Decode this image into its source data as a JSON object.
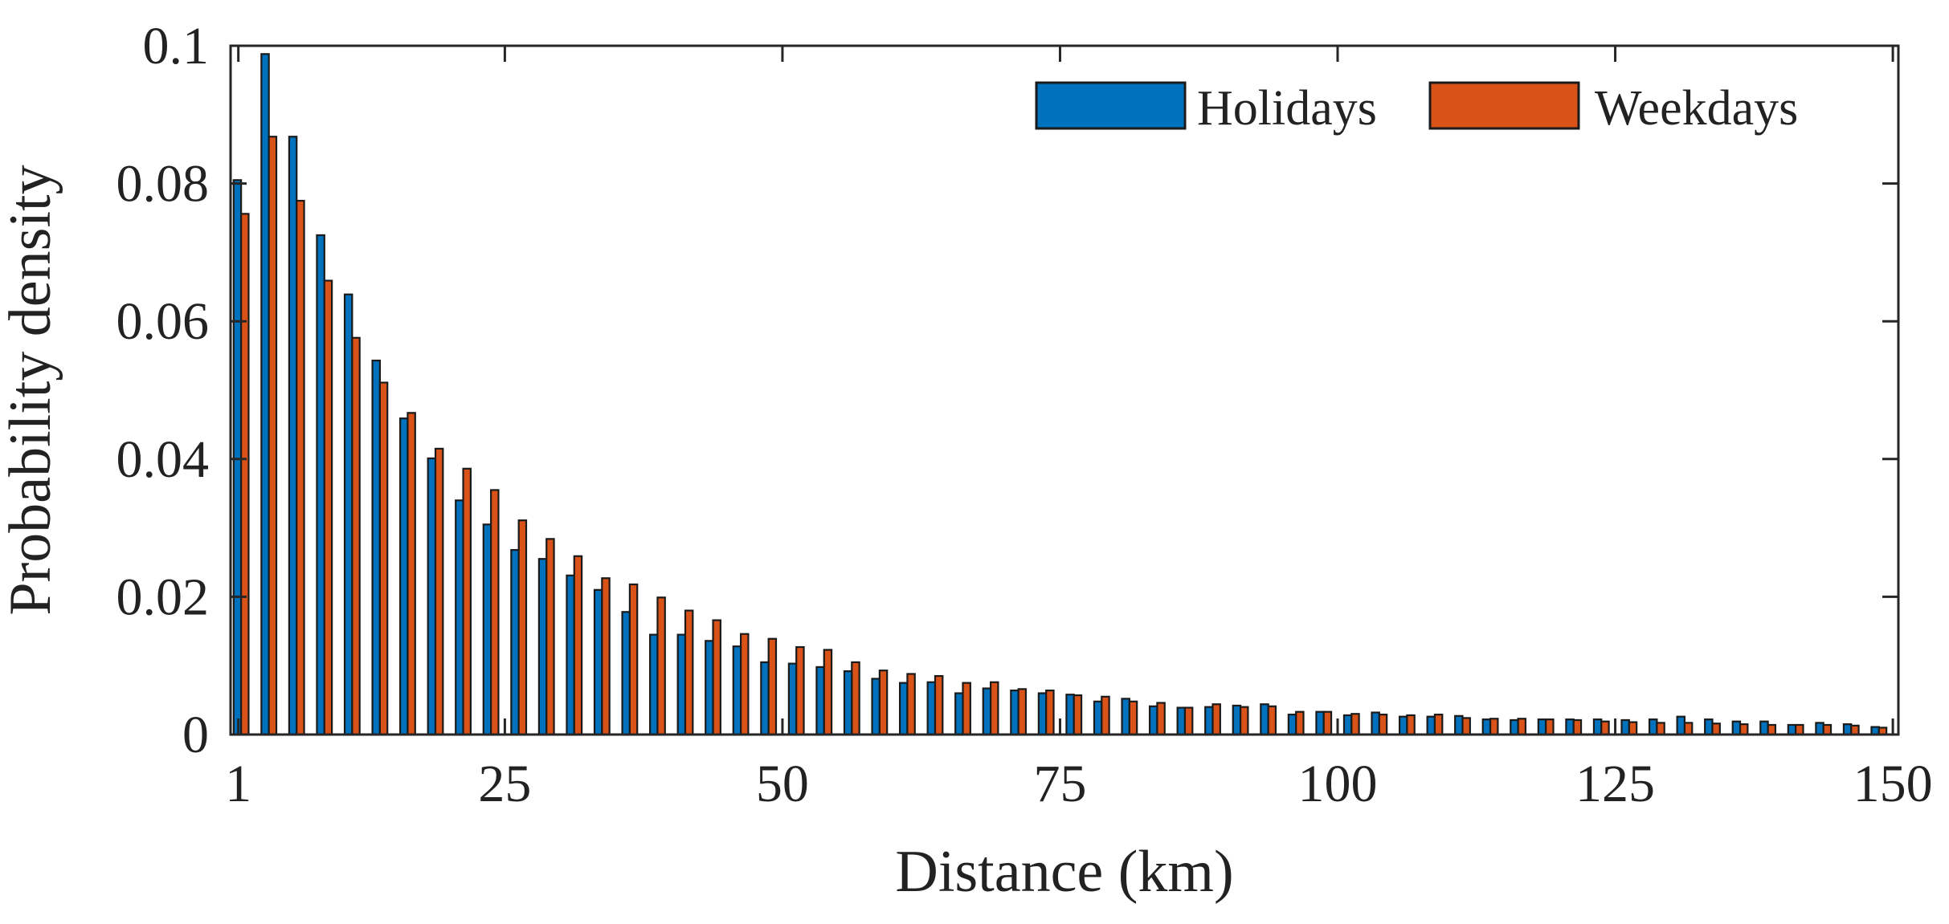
{
  "chart_data": {
    "type": "bar",
    "xlabel": "Distance (km)",
    "ylabel": "Probability density",
    "xlim": [
      0.3,
      150.5
    ],
    "ylim": [
      0,
      0.1
    ],
    "x_ticks": [
      1,
      25,
      50,
      75,
      100,
      125,
      150
    ],
    "x_tick_labels": [
      "1",
      "25",
      "50",
      "75",
      "100",
      "125",
      "150"
    ],
    "y_ticks": [
      0,
      0.02,
      0.04,
      0.06,
      0.08,
      0.1
    ],
    "y_tick_labels": [
      "0",
      "0.02",
      "0.04",
      "0.06",
      "0.08",
      "0.1"
    ],
    "legend_position": "top-right",
    "grid": false,
    "bin_width_km": 2.5,
    "x": [
      1.25,
      3.75,
      6.25,
      8.75,
      11.25,
      13.75,
      16.25,
      18.75,
      21.25,
      23.75,
      26.25,
      28.75,
      31.25,
      33.75,
      36.25,
      38.75,
      41.25,
      43.75,
      46.25,
      48.75,
      51.25,
      53.75,
      56.25,
      58.75,
      61.25,
      63.75,
      66.25,
      68.75,
      71.25,
      73.75,
      76.25,
      78.75,
      81.25,
      83.75,
      86.25,
      88.75,
      91.25,
      93.75,
      96.25,
      98.75,
      101.25,
      103.75,
      106.25,
      108.75,
      111.25,
      113.75,
      116.25,
      118.75,
      121.25,
      123.75,
      126.25,
      128.75,
      131.25,
      133.75,
      136.25,
      138.75,
      141.25,
      143.75,
      146.25,
      148.75
    ],
    "series": [
      {
        "name": "Holidays",
        "color": "#0072BD",
        "values": [
          0.0805,
          0.0988,
          0.0868,
          0.0725,
          0.0639,
          0.0543,
          0.0459,
          0.0401,
          0.034,
          0.0305,
          0.0268,
          0.0255,
          0.0231,
          0.021,
          0.0178,
          0.0145,
          0.0145,
          0.0136,
          0.0128,
          0.0105,
          0.0103,
          0.0098,
          0.0092,
          0.0081,
          0.0075,
          0.0076,
          0.006,
          0.0067,
          0.0064,
          0.006,
          0.0058,
          0.0048,
          0.0052,
          0.0041,
          0.0039,
          0.004,
          0.0042,
          0.0044,
          0.0029,
          0.0033,
          0.0028,
          0.0032,
          0.0026,
          0.0026,
          0.0027,
          0.0022,
          0.0021,
          0.0022,
          0.0022,
          0.0022,
          0.0021,
          0.0022,
          0.0026,
          0.0022,
          0.0019,
          0.0019,
          0.0014,
          0.0017,
          0.0015,
          0.0011
        ]
      },
      {
        "name": "Weekdays",
        "color": "#D95319",
        "values": [
          0.0756,
          0.0868,
          0.0775,
          0.0659,
          0.0576,
          0.0511,
          0.0467,
          0.0415,
          0.0386,
          0.0355,
          0.0311,
          0.0284,
          0.0259,
          0.0227,
          0.0218,
          0.0199,
          0.018,
          0.0166,
          0.0146,
          0.0139,
          0.0127,
          0.0123,
          0.0105,
          0.0093,
          0.0088,
          0.0085,
          0.0075,
          0.0076,
          0.0066,
          0.0064,
          0.0057,
          0.0055,
          0.0048,
          0.0046,
          0.0039,
          0.0044,
          0.004,
          0.0041,
          0.0033,
          0.0033,
          0.003,
          0.0029,
          0.0028,
          0.0029,
          0.0024,
          0.0023,
          0.0023,
          0.0022,
          0.0021,
          0.0019,
          0.0018,
          0.0017,
          0.0017,
          0.0016,
          0.0015,
          0.0014,
          0.0014,
          0.0014,
          0.0013,
          0.001
        ]
      }
    ]
  }
}
